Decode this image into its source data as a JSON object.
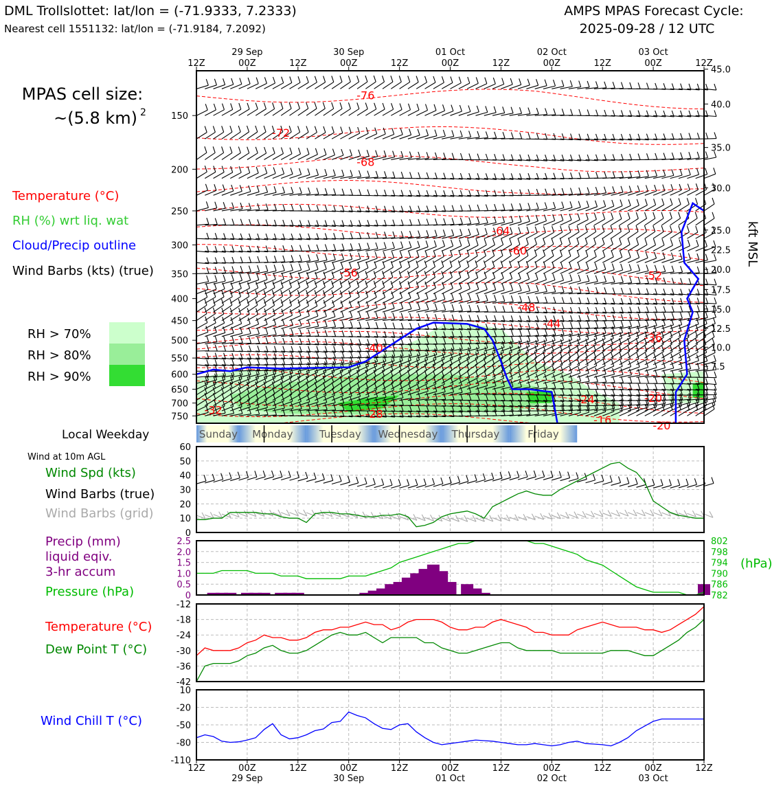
{
  "header": {
    "title_left": "DML Trollslottet: lat/lon = (-71.9333, 7.2333)",
    "subtitle_left": "Nearest cell 1551132: lat/lon = (-71.9184, 7.2092)",
    "title_right_1": "AMPS MPAS Forecast Cycle:",
    "title_right_2": "2025-09-28 / 12 UTC"
  },
  "cell_size": {
    "line1": "MPAS cell size:",
    "line2": "~(5.8 km)",
    "sup": "2"
  },
  "legend": {
    "temperature": "Temperature (°C)",
    "rh": "RH (%) wrt liq. wat",
    "cloud": "Cloud/Precip outline",
    "barbs": "Wind Barbs (kts) (true)",
    "rh70": "RH > 70%",
    "rh80": "RH > 80%",
    "rh90": "RH > 90%"
  },
  "colors": {
    "temp": "#ff0000",
    "rh_label": "#33cc33",
    "cloud": "#0000ff",
    "rh70": "#ccffcc",
    "rh80": "#99ee99",
    "rh90": "#33dd33",
    "precip": "#800080",
    "pressure": "#00bb00",
    "dew": "#008800",
    "windchill": "#0000ff",
    "grid_barb": "#aaaaaa",
    "wind_spd": "#008800"
  },
  "time_axis": {
    "ticks": [
      "12Z",
      "00Z",
      "12Z",
      "00Z",
      "12Z",
      "00Z",
      "12Z",
      "00Z",
      "12Z",
      "00Z",
      "12Z"
    ],
    "dates": [
      "",
      "29 Sep",
      "",
      "30 Sep",
      "",
      "01 Oct",
      "",
      "02 Oct",
      "",
      "03 Oct",
      ""
    ]
  },
  "weekday": {
    "label": "Local Weekday",
    "days": [
      "Sunday",
      "Monday",
      "Tuesday",
      "Wednesday",
      "Thursday",
      "Friday"
    ]
  },
  "wind10m": {
    "title": "Wind at 10m AGL",
    "spd_label": "Wind Spd (kts)",
    "barb_true": "Wind Barbs (true)",
    "barb_grid": "Wind Barbs (grid)"
  },
  "precip_panel": {
    "l1": "Precip (mm)",
    "l2": "liquid eqiv.",
    "l3": "3-hr accum",
    "pres": "Pressure (hPa)",
    "unit": "(hPa)"
  },
  "temp_panel": {
    "temp": "Temperature (°C)",
    "dew": "Dew Point T (°C)"
  },
  "wc_panel": {
    "label": "Wind Chill T (°C)"
  },
  "chart_data": [
    {
      "type": "heatmap",
      "name": "upper-air cross-section",
      "yticks_hpa": [
        150,
        200,
        250,
        300,
        350,
        400,
        450,
        500,
        550,
        600,
        650,
        700,
        750
      ],
      "yticks_kft": [
        "45.0",
        "40.0",
        "35.0",
        "30.0",
        "25.0",
        "22.5",
        "20.0",
        "17.5",
        "15.0",
        "12.5",
        "10.0",
        "7.5"
      ],
      "kft_hpa": [
        117,
        141,
        178,
        221,
        277,
        308,
        342,
        381,
        423,
        469,
        519,
        575
      ],
      "ylabel_right": "kft MSL",
      "ylim_hpa": [
        118,
        780
      ],
      "temp_labels": [
        {
          "t": "-76",
          "hour": 60,
          "p": 135
        },
        {
          "t": "-72",
          "hour": 30,
          "p": 165
        },
        {
          "t": "-68",
          "hour": 60,
          "p": 193
        },
        {
          "t": "-64",
          "hour": 108,
          "p": 279
        },
        {
          "t": "-60",
          "hour": 114,
          "p": 310
        },
        {
          "t": "-56",
          "hour": 54,
          "p": 349
        },
        {
          "t": "-52",
          "hour": 162,
          "p": 354
        },
        {
          "t": "-48",
          "hour": 117,
          "p": 420
        },
        {
          "t": "-44",
          "hour": 126,
          "p": 458
        },
        {
          "t": "-40",
          "hour": 63,
          "p": 522
        },
        {
          "t": "-36",
          "hour": 162,
          "p": 494
        },
        {
          "t": "-32",
          "hour": 6,
          "p": 728
        },
        {
          "t": "-28",
          "hour": 63,
          "p": 743
        },
        {
          "t": "-24",
          "hour": 138,
          "p": 688
        },
        {
          "t": "-20",
          "hour": 162,
          "p": 683
        },
        {
          "t": "-16",
          "hour": 144,
          "p": 768
        },
        {
          "t": "-20",
          "hour": 165,
          "p": 792
        }
      ]
    },
    {
      "type": "line",
      "name": "wind at 10m",
      "hours": [
        0,
        3,
        6,
        9,
        12,
        15,
        18,
        21,
        24,
        27,
        30,
        33,
        36,
        39,
        42,
        45,
        48,
        51,
        54,
        57,
        60,
        63,
        66,
        69,
        72,
        75,
        78,
        81,
        84,
        87,
        90,
        93,
        96,
        99,
        102,
        105,
        108,
        111,
        114,
        117,
        120,
        123,
        126,
        129,
        132,
        135,
        138,
        141,
        144,
        147,
        150,
        153,
        156,
        159,
        162,
        165,
        168,
        171,
        174,
        177,
        180
      ],
      "wind_spd_kts": [
        9,
        9,
        10,
        10,
        14,
        14,
        14,
        14,
        13,
        13,
        11,
        10,
        10,
        7,
        13,
        14,
        14,
        13,
        13,
        12,
        11,
        11,
        12,
        12,
        13,
        11,
        4,
        5,
        7,
        11,
        13,
        14,
        15,
        13,
        10,
        18,
        21,
        24,
        27,
        29,
        27,
        26,
        26,
        30,
        33,
        36,
        39,
        42,
        45,
        48,
        49,
        45,
        42,
        35,
        22,
        18,
        14,
        12,
        11,
        10,
        10
      ],
      "ylim": [
        0,
        60
      ],
      "yticks": [
        0,
        10,
        20,
        30,
        40,
        50,
        60
      ]
    },
    {
      "type": "bar",
      "name": "precip and pressure",
      "hours": [
        0,
        3,
        6,
        9,
        12,
        15,
        18,
        21,
        24,
        27,
        30,
        33,
        36,
        39,
        42,
        45,
        48,
        51,
        54,
        57,
        60,
        63,
        66,
        69,
        72,
        75,
        78,
        81,
        84,
        87,
        90,
        93,
        96,
        99,
        102,
        105,
        108,
        111,
        114,
        117,
        120,
        123,
        126,
        129,
        132,
        135,
        138,
        141,
        144,
        147,
        150,
        153,
        156,
        159,
        162,
        165,
        168,
        171,
        174,
        177,
        180
      ],
      "precip_mm": [
        0,
        0,
        0.1,
        0.1,
        0.1,
        0,
        0.1,
        0.1,
        0.1,
        0,
        0.1,
        0.1,
        0.1,
        0,
        0,
        0,
        0,
        0,
        0,
        0,
        0.1,
        0.2,
        0.3,
        0.5,
        0.6,
        0.8,
        1,
        1.2,
        1.4,
        1.1,
        0.6,
        0,
        0.5,
        0.3,
        0.1,
        0,
        0,
        0,
        0,
        0,
        0,
        0,
        0,
        0,
        0,
        0,
        0,
        0,
        0,
        0,
        0,
        0,
        0,
        0,
        0,
        0,
        0,
        0,
        0,
        0,
        0.5
      ],
      "pressure_hpa": [
        790,
        790,
        790,
        791,
        791,
        791,
        791,
        790,
        790,
        790,
        789,
        789,
        789,
        788,
        788,
        788,
        788,
        788,
        789,
        789,
        789,
        790,
        791,
        792,
        794,
        795,
        796,
        797,
        798,
        799,
        800,
        801,
        801,
        802,
        802,
        802,
        802,
        802,
        802,
        802,
        801,
        801,
        800,
        799,
        798,
        797,
        795,
        794,
        793,
        791,
        789,
        787,
        785,
        784,
        783,
        783,
        783,
        783,
        782,
        782,
        783
      ],
      "precip_ylim": [
        0,
        2.5
      ],
      "precip_yticks": [
        "0",
        "0.5",
        "1.0",
        "1.5",
        "2.0",
        "2.5"
      ],
      "pressure_ylim": [
        782,
        802
      ],
      "pressure_yticks": [
        "782",
        "786",
        "790",
        "794",
        "798",
        "802"
      ]
    },
    {
      "type": "line",
      "name": "temperature and dew point",
      "hours": [
        0,
        3,
        6,
        9,
        12,
        15,
        18,
        21,
        24,
        27,
        30,
        33,
        36,
        39,
        42,
        45,
        48,
        51,
        54,
        57,
        60,
        63,
        66,
        69,
        72,
        75,
        78,
        81,
        84,
        87,
        90,
        93,
        96,
        99,
        102,
        105,
        108,
        111,
        114,
        117,
        120,
        123,
        126,
        129,
        132,
        135,
        138,
        141,
        144,
        147,
        150,
        153,
        156,
        159,
        162,
        165,
        168,
        171,
        174,
        177,
        180
      ],
      "temperature_c": [
        -32,
        -29,
        -30,
        -30,
        -30,
        -29,
        -27,
        -26,
        -24,
        -25,
        -25,
        -26,
        -26,
        -25,
        -23,
        -22,
        -22,
        -21,
        -21,
        -20,
        -19,
        -20,
        -20,
        -22,
        -21,
        -19,
        -18,
        -18,
        -18,
        -19,
        -21,
        -22,
        -22,
        -21,
        -21,
        -19,
        -18,
        -19,
        -20,
        -21,
        -23,
        -23,
        -24,
        -24,
        -24,
        -22,
        -21,
        -20,
        -19,
        -20,
        -21,
        -21,
        -21,
        -22,
        -22,
        -23,
        -22,
        -20,
        -18,
        -16,
        -13
      ],
      "dewpoint_c": [
        -42,
        -36,
        -35,
        -35,
        -35,
        -34,
        -32,
        -31,
        -29,
        -28,
        -30,
        -31,
        -31,
        -30,
        -28,
        -26,
        -24,
        -23,
        -24,
        -24,
        -23,
        -25,
        -27,
        -25,
        -25,
        -25,
        -25,
        -27,
        -27,
        -29,
        -30,
        -31,
        -31,
        -30,
        -29,
        -28,
        -27,
        -27,
        -29,
        -30,
        -30,
        -30,
        -30,
        -31,
        -31,
        -31,
        -31,
        -31,
        -31,
        -30,
        -30,
        -30,
        -31,
        -32,
        -32,
        -30,
        -28,
        -26,
        -23,
        -21,
        -18
      ],
      "ylim": [
        -42,
        -12
      ],
      "yticks": [
        -42,
        -36,
        -30,
        -24,
        -18,
        -12
      ]
    },
    {
      "type": "line",
      "name": "wind chill",
      "hours": [
        0,
        3,
        6,
        9,
        12,
        15,
        18,
        21,
        24,
        27,
        30,
        33,
        36,
        39,
        42,
        45,
        48,
        51,
        54,
        57,
        60,
        63,
        66,
        69,
        72,
        75,
        78,
        81,
        84,
        87,
        90,
        93,
        96,
        99,
        102,
        105,
        108,
        111,
        114,
        117,
        120,
        123,
        126,
        129,
        132,
        135,
        138,
        141,
        144,
        147,
        150,
        153,
        156,
        159,
        162,
        165,
        168,
        171,
        174,
        177,
        180
      ],
      "windchill_c": [
        -72,
        -67,
        -70,
        -78,
        -80,
        -79,
        -76,
        -72,
        -58,
        -48,
        -67,
        -74,
        -72,
        -67,
        -60,
        -57,
        -46,
        -44,
        -28,
        -34,
        -38,
        -48,
        -56,
        -58,
        -50,
        -48,
        -62,
        -72,
        -80,
        -84,
        -82,
        -80,
        -78,
        -76,
        -77,
        -78,
        -80,
        -82,
        -84,
        -84,
        -82,
        -84,
        -86,
        -84,
        -80,
        -78,
        -82,
        -83,
        -84,
        -86,
        -80,
        -72,
        -60,
        -52,
        -44,
        -40,
        -40,
        -40,
        -40,
        -40,
        -40
      ],
      "ylim": [
        -110,
        10
      ],
      "yticks": [
        -110,
        -80,
        -50,
        -20,
        10
      ]
    }
  ]
}
